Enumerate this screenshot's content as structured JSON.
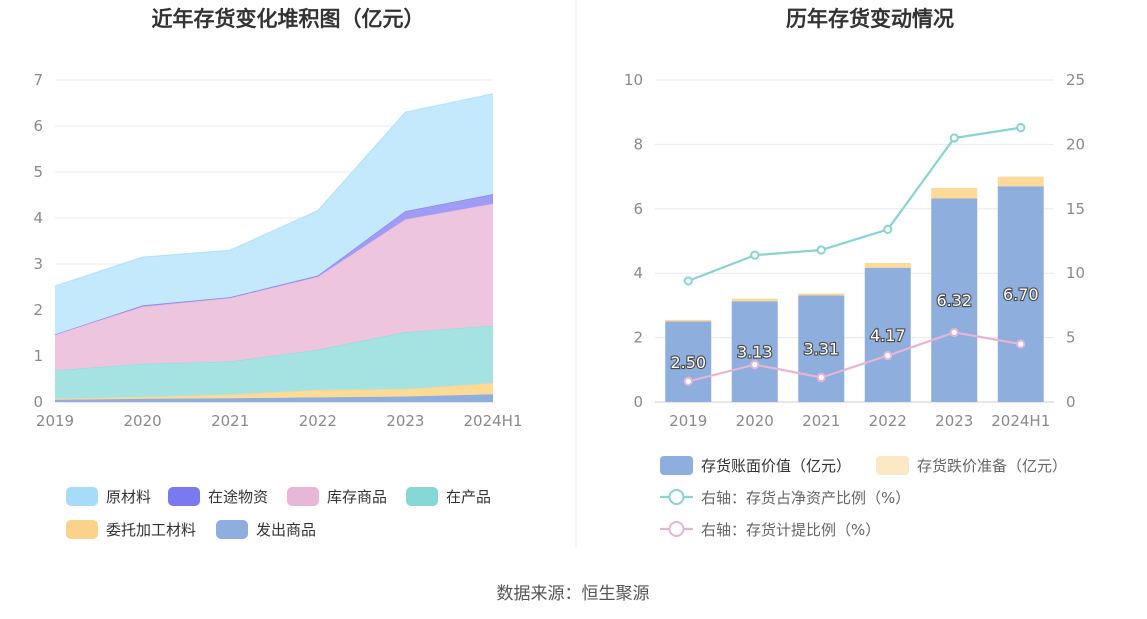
{
  "source_text": "数据来源：恒生聚源",
  "chart_data": [
    {
      "type": "area",
      "stacked": true,
      "title": "近年存货变化堆积图（亿元）",
      "x": [
        "2019",
        "2020",
        "2021",
        "2022",
        "2023",
        "2024H1"
      ],
      "ylim": [
        0,
        7
      ],
      "y_ticks": [
        "0",
        "1",
        "2",
        "3",
        "4",
        "5",
        "6",
        "7"
      ],
      "grid": true,
      "legend_position": "bottom",
      "series": [
        {
          "name": "发出商品",
          "color": "#8eaedd",
          "values": [
            0.05,
            0.07,
            0.08,
            0.1,
            0.12,
            0.17
          ]
        },
        {
          "name": "委托加工材料",
          "color": "#fddb95",
          "values": [
            0.02,
            0.04,
            0.08,
            0.16,
            0.16,
            0.24
          ]
        },
        {
          "name": "在产品",
          "color": "#a5e3e3",
          "values": [
            0.62,
            0.72,
            0.72,
            0.88,
            1.24,
            1.25
          ]
        },
        {
          "name": "库存商品",
          "color": "#eec5df",
          "values": [
            0.78,
            1.24,
            1.38,
            1.58,
            2.45,
            2.65
          ]
        },
        {
          "name": "在途物资",
          "color": "#9e9cf5",
          "values": [
            0.0,
            0.03,
            0.02,
            0.03,
            0.18,
            0.21
          ]
        },
        {
          "name": "原材料",
          "color": "#c5e9fc",
          "values": [
            1.05,
            1.05,
            1.02,
            1.41,
            2.15,
            2.18
          ]
        }
      ],
      "legend_order": [
        "原材料",
        "在途物资",
        "库存商品",
        "在产品",
        "委托加工材料",
        "发出商品"
      ],
      "legend_colors": {
        "原材料": "#a7dcf8",
        "在途物资": "#7b79ef",
        "库存商品": "#e8b6d6",
        "在产品": "#86d8d8",
        "委托加工材料": "#fcd18a",
        "发出商品": "#8eaedd"
      }
    },
    {
      "type": "bar",
      "stacked": true,
      "title": "历年存货变动情况",
      "categories": [
        "2019",
        "2020",
        "2021",
        "2022",
        "2023",
        "2024H1"
      ],
      "ylim_left": [
        0,
        10
      ],
      "ylim_right": [
        0,
        25
      ],
      "left_ticks": [
        "0",
        "2",
        "4",
        "6",
        "8",
        "10"
      ],
      "right_ticks": [
        "0",
        "5",
        "10",
        "15",
        "20",
        "25"
      ],
      "grid": true,
      "legend_position": "bottom",
      "series": [
        {
          "name": "存货账面价值（亿元）",
          "kind": "bar",
          "axis": "left",
          "color": "#8eaedd",
          "values": [
            2.5,
            3.13,
            3.31,
            4.17,
            6.32,
            6.7
          ],
          "labels": [
            "2.50",
            "3.13",
            "3.31",
            "4.17",
            "6.32",
            "6.70"
          ]
        },
        {
          "name": "存货跌价准备（亿元）",
          "kind": "bar",
          "axis": "left",
          "color": "#fdd99a",
          "legend_color": "#fde8c6",
          "values": [
            0.05,
            0.08,
            0.06,
            0.15,
            0.33,
            0.3
          ]
        },
        {
          "name": "右轴：存货占净资产比例（%）",
          "kind": "line",
          "axis": "right",
          "color": "#88d3d3",
          "values": [
            9.4,
            11.4,
            11.8,
            13.4,
            20.5,
            21.3
          ]
        },
        {
          "name": "右轴：存货计提比例（%）",
          "kind": "line",
          "axis": "right",
          "color": "#e6b4d4",
          "values": [
            1.6,
            2.9,
            1.9,
            3.6,
            5.4,
            4.5
          ]
        }
      ]
    }
  ]
}
